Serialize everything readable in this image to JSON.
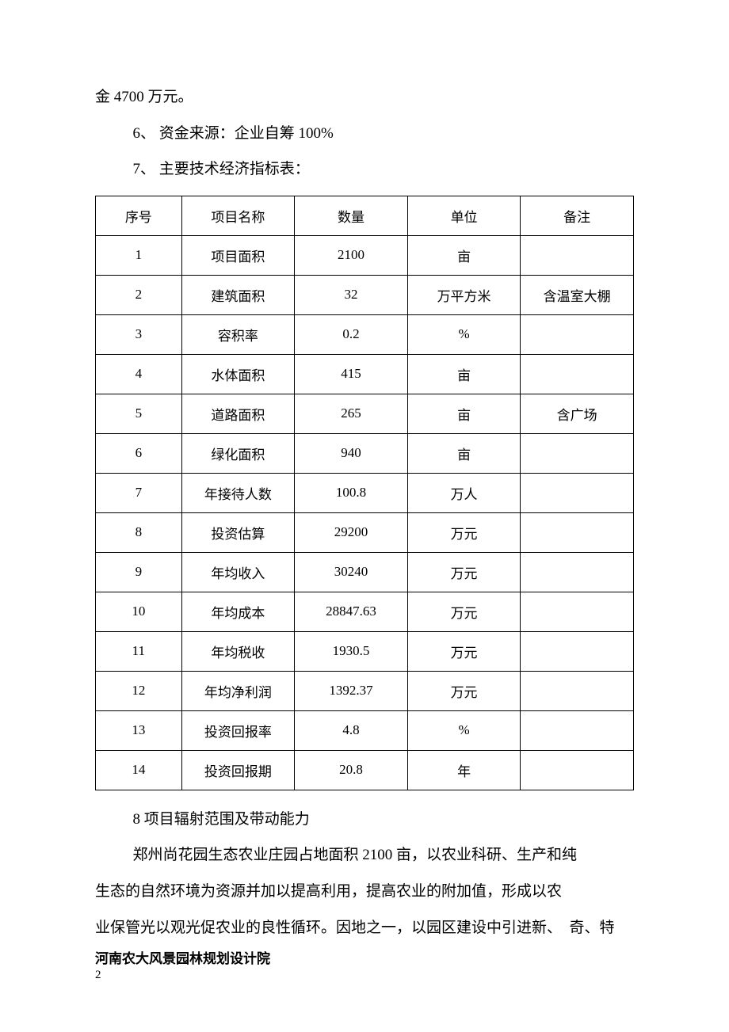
{
  "topText": {
    "fragment": "金 4700 万元。",
    "item6": "6、 资金来源：企业自筹 100%",
    "item7": "7、 主要技术经济指标表："
  },
  "table": {
    "columns": [
      "序号",
      "项目名称",
      "数量",
      "单位",
      "备注"
    ],
    "rows": [
      [
        "1",
        "项目面积",
        "2100",
        "亩",
        ""
      ],
      [
        "2",
        "建筑面积",
        "32",
        "万平方米",
        "含温室大棚"
      ],
      [
        "3",
        "容积率",
        "0.2",
        "%",
        ""
      ],
      [
        "4",
        "水体面积",
        "415",
        "亩",
        ""
      ],
      [
        "5",
        "道路面积",
        "265",
        "亩",
        "含广场"
      ],
      [
        "6",
        "绿化面积",
        "940",
        "亩",
        ""
      ],
      [
        "7",
        "年接待人数",
        "100.8",
        "万人",
        ""
      ],
      [
        "8",
        "投资估算",
        "29200",
        "万元",
        ""
      ],
      [
        "9",
        "年均收入",
        "30240",
        "万元",
        ""
      ],
      [
        "10",
        "年均成本",
        "28847.63",
        "万元",
        ""
      ],
      [
        "11",
        "年均税收",
        "1930.5",
        "万元",
        ""
      ],
      [
        "12",
        "年均净利润",
        "1392.37",
        "万元",
        ""
      ],
      [
        "13",
        "投资回报率",
        "4.8",
        "%",
        ""
      ],
      [
        "14",
        "投资回报期",
        "20.8",
        "年",
        ""
      ]
    ],
    "colWidthsPct": [
      16,
      21,
      21,
      21,
      21
    ],
    "borderColor": "#000000",
    "headerFontSize": 17,
    "cellFontSize": 17
  },
  "afterTable": {
    "heading8": "8 项目辐射范围及带动能力",
    "para1": "郑州尚花园生态农业庄园占地面积 2100 亩，以农业科研、生产和纯",
    "para2": "生态的自然环境为资源并加以提高利用，提高农业的附加值，形成以农",
    "para3": "业保管光以观光促农业的良性循环。因地之一，以园区建设中引进新、　奇、特"
  },
  "footer": {
    "org": "河南农大风景园林规划设计院",
    "pageNum": "2"
  },
  "style": {
    "backgroundColor": "#ffffff",
    "textColor": "#000000",
    "bodyFontSize": 19,
    "lineHeight": 2.4
  }
}
